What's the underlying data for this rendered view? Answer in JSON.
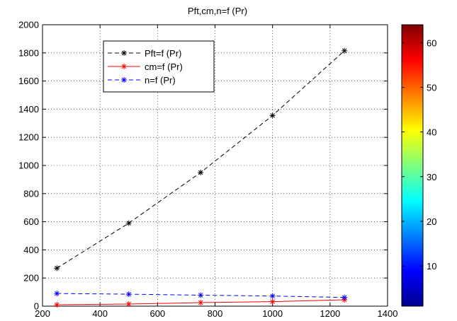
{
  "chart_data": {
    "type": "line",
    "title": "Pft,cm,n=f (Pr)",
    "xlabel": "",
    "ylabel": "",
    "xlim": [
      200,
      1400
    ],
    "ylim": [
      0,
      2000
    ],
    "xticks": [
      200,
      400,
      600,
      800,
      1000,
      1200,
      1400
    ],
    "yticks": [
      0,
      200,
      400,
      600,
      800,
      1000,
      1200,
      1400,
      1600,
      1800,
      2000
    ],
    "grid": true,
    "legend_position": "top-left",
    "x": [
      250,
      500,
      750,
      1000,
      1250
    ],
    "series": [
      {
        "name": "Pft=f (Pr)",
        "color": "#000000",
        "line_style": "dashed",
        "marker": "asterisk",
        "values": [
          270,
          590,
          950,
          1355,
          1815
        ]
      },
      {
        "name": "cm=f (Pr)",
        "color": "#ff0000",
        "line_style": "solid",
        "marker": "asterisk",
        "values": [
          10,
          15,
          25,
          32,
          45
        ]
      },
      {
        "name": "n=f (Pr)",
        "color": "#0000ff",
        "line_style": "dashed",
        "marker": "asterisk",
        "values": [
          90,
          85,
          78,
          72,
          62
        ]
      }
    ],
    "colorbar": {
      "colormap": "jet",
      "range": [
        1,
        64
      ],
      "ticks": [
        10,
        20,
        30,
        40,
        50,
        60
      ]
    }
  }
}
